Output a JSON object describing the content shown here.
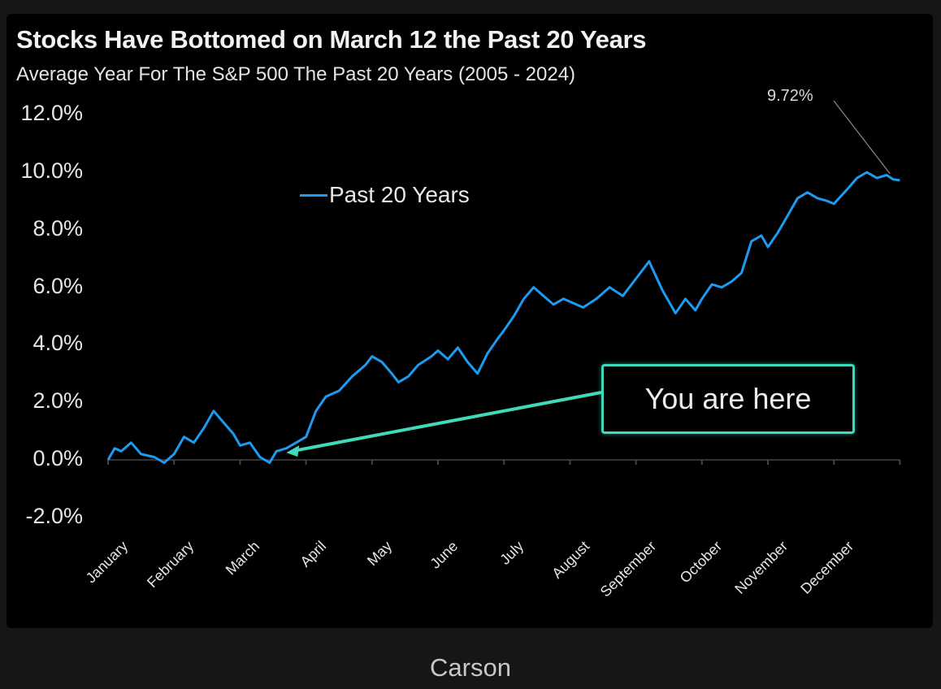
{
  "chart_data": {
    "type": "line",
    "title": "Stocks Have Bottomed on March 12 the Past 20 Years",
    "subtitle": "Average Year For The S&P 500 The Past 20 Years (2005 - 2024)",
    "xlabel": "",
    "ylabel": "",
    "ylim": [
      -2.0,
      12.0
    ],
    "yticks": [
      "12.0%",
      "10.0%",
      "8.0%",
      "6.0%",
      "4.0%",
      "2.0%",
      "0.0%",
      "-2.0%"
    ],
    "categories": [
      "January",
      "February",
      "March",
      "April",
      "May",
      "June",
      "July",
      "August",
      "September",
      "October",
      "November",
      "December"
    ],
    "grid": false,
    "legend": {
      "position": "upper-left-center",
      "entries": [
        "Past 20 Years"
      ]
    },
    "series": [
      {
        "name": "Past 20 Years",
        "color": "#1c9bf0",
        "x_month_fraction": [
          0.0,
          0.1,
          0.2,
          0.35,
          0.5,
          0.7,
          0.85,
          1.0,
          1.15,
          1.3,
          1.45,
          1.6,
          1.75,
          1.9,
          2.0,
          2.15,
          2.3,
          2.45,
          2.55,
          2.7,
          2.85,
          3.0,
          3.15,
          3.3,
          3.5,
          3.7,
          3.9,
          4.0,
          4.15,
          4.3,
          4.4,
          4.55,
          4.7,
          4.9,
          5.0,
          5.15,
          5.3,
          5.45,
          5.6,
          5.75,
          5.9,
          6.0,
          6.15,
          6.3,
          6.45,
          6.6,
          6.75,
          6.9,
          7.0,
          7.2,
          7.4,
          7.6,
          7.8,
          8.0,
          8.2,
          8.4,
          8.5,
          8.6,
          8.75,
          8.9,
          9.0,
          9.15,
          9.3,
          9.45,
          9.6,
          9.75,
          9.9,
          10.0,
          10.15,
          10.3,
          10.45,
          10.6,
          10.75,
          10.9,
          11.0,
          11.2,
          11.35,
          11.5,
          11.65,
          11.8,
          11.9,
          12.0
        ],
        "values": [
          0.0,
          0.4,
          0.3,
          0.6,
          0.2,
          0.1,
          -0.1,
          0.2,
          0.8,
          0.6,
          1.1,
          1.7,
          1.3,
          0.9,
          0.5,
          0.6,
          0.1,
          -0.1,
          0.3,
          0.4,
          0.6,
          0.8,
          1.7,
          2.2,
          2.4,
          2.9,
          3.3,
          3.6,
          3.4,
          3.0,
          2.7,
          2.9,
          3.3,
          3.6,
          3.8,
          3.5,
          3.9,
          3.4,
          3.0,
          3.7,
          4.2,
          4.5,
          5.0,
          5.6,
          6.0,
          5.7,
          5.4,
          5.6,
          5.5,
          5.3,
          5.6,
          6.0,
          5.7,
          6.3,
          6.9,
          5.9,
          5.5,
          5.1,
          5.6,
          5.2,
          5.6,
          6.1,
          6.0,
          6.2,
          6.5,
          7.6,
          7.8,
          7.4,
          7.9,
          8.5,
          9.1,
          9.3,
          9.1,
          9.0,
          8.9,
          9.4,
          9.8,
          10.0,
          9.8,
          9.9,
          9.75,
          9.72
        ]
      }
    ],
    "annotations": [
      {
        "text": "9.72%",
        "points_to": "year-end value"
      },
      {
        "text": "You are here",
        "points_to": "mid-March"
      }
    ]
  },
  "header": {
    "title": "Stocks Have Bottomed on March 12 the Past 20 Years",
    "subtitle": "Average Year For The S&P 500 The Past 20 Years (2005 - 2024)"
  },
  "legend": {
    "label": "Past 20 Years"
  },
  "annotation": {
    "end_value": "9.72%",
    "callout": "You are here"
  },
  "colors": {
    "line": "#1c9bf0",
    "callout": "#3fd9bb",
    "background": "#000000",
    "page": "#161616"
  },
  "footer": {
    "source": "Carson"
  }
}
